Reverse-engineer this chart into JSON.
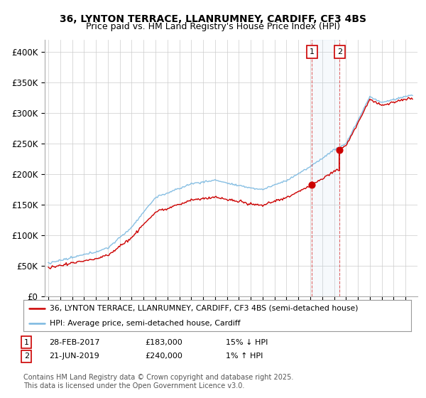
{
  "title": "36, LYNTON TERRACE, LLANRUMNEY, CARDIFF, CF3 4BS",
  "subtitle": "Price paid vs. HM Land Registry's House Price Index (HPI)",
  "ylim": [
    0,
    420000
  ],
  "yticks": [
    0,
    50000,
    100000,
    150000,
    200000,
    250000,
    300000,
    350000,
    400000
  ],
  "ytick_labels": [
    "£0",
    "£50K",
    "£100K",
    "£150K",
    "£200K",
    "£250K",
    "£300K",
    "£350K",
    "£400K"
  ],
  "hpi_color": "#7ab8e0",
  "price_color": "#cc0000",
  "background_color": "#ffffff",
  "grid_color": "#cccccc",
  "sale1_year": 2017.125,
  "sale1_price": 183000,
  "sale2_year": 2019.458,
  "sale2_price": 240000,
  "legend_label1": "36, LYNTON TERRACE, LLANRUMNEY, CARDIFF, CF3 4BS (semi-detached house)",
  "legend_label2": "HPI: Average price, semi-detached house, Cardiff",
  "footer": "Contains HM Land Registry data © Crown copyright and database right 2025.\nThis data is licensed under the Open Government Licence v3.0.",
  "title_fontsize": 10,
  "subtitle_fontsize": 9
}
